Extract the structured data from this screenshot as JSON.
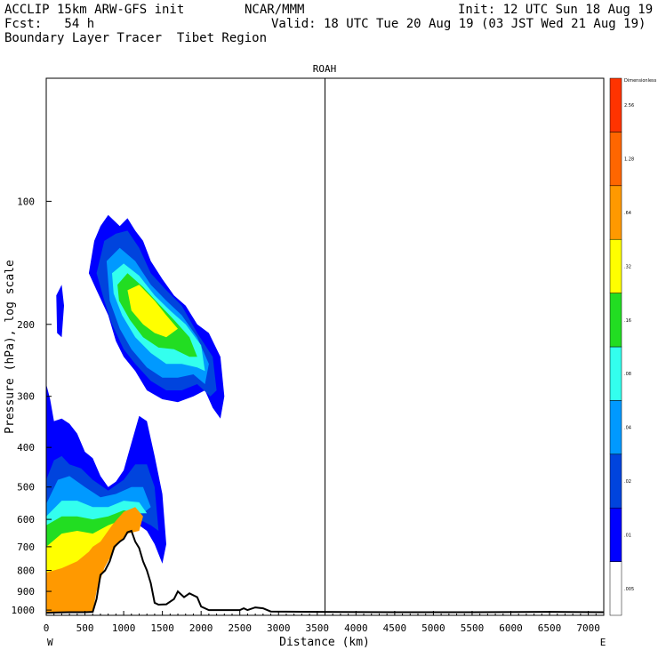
{
  "header": {
    "line1_left": "ACCLIP 15km ARW-GFS init",
    "line1_center": "NCAR/MMM",
    "line1_right": "Init: 12 UTC Sun 18 Aug 19",
    "line2_left": "Fcst:   54 h",
    "line2_right": "Valid: 18 UTC Tue 20 Aug 19 (03 JST Wed 21 Aug 19)",
    "line3_left": "Boundary Layer Tracer  Tibet Region"
  },
  "chart_data": {
    "type": "heatmap",
    "title": "ROAH",
    "xlabel": "Distance (km)",
    "ylabel": "Pressure (hPa), log scale",
    "x_ticks": [
      0,
      500,
      1000,
      1500,
      2000,
      2500,
      3000,
      3500,
      4000,
      4500,
      5000,
      5500,
      6000,
      6500,
      7000
    ],
    "y_ticks": [
      100,
      200,
      300,
      400,
      500,
      600,
      700,
      800,
      900,
      1000
    ],
    "y_scale": "log",
    "xlim": [
      0,
      7200
    ],
    "ylim": [
      1030,
      50
    ],
    "x_ends": {
      "left": "W",
      "right": "E"
    },
    "vertical_marker_km": 3600,
    "colorbar": {
      "title": "Dimensionless",
      "levels": [
        ".005",
        ".01",
        ".02",
        ".04",
        ".08",
        ".16",
        ".32",
        ".64",
        "1.28",
        "2.56"
      ],
      "colors": [
        "#ffffff",
        "#0000ff",
        "#0044dd",
        "#0099ff",
        "#33ffee",
        "#22dd22",
        "#ffff00",
        "#ff9900",
        "#ff6600",
        "#ff3300"
      ]
    },
    "terrain_profile": [
      [
        0,
        1015
      ],
      [
        100,
        1014
      ],
      [
        300,
        1012
      ],
      [
        500,
        1012
      ],
      [
        600,
        1010
      ],
      [
        650,
        940
      ],
      [
        700,
        820
      ],
      [
        760,
        800
      ],
      [
        820,
        760
      ],
      [
        880,
        700
      ],
      [
        950,
        680
      ],
      [
        1000,
        670
      ],
      [
        1050,
        645
      ],
      [
        1100,
        640
      ],
      [
        1150,
        680
      ],
      [
        1200,
        705
      ],
      [
        1250,
        760
      ],
      [
        1300,
        800
      ],
      [
        1350,
        860
      ],
      [
        1400,
        960
      ],
      [
        1450,
        970
      ],
      [
        1550,
        968
      ],
      [
        1650,
        940
      ],
      [
        1700,
        900
      ],
      [
        1780,
        930
      ],
      [
        1850,
        910
      ],
      [
        1950,
        930
      ],
      [
        2000,
        980
      ],
      [
        2100,
        1000
      ],
      [
        2500,
        1000
      ],
      [
        2550,
        990
      ],
      [
        2600,
        1000
      ],
      [
        2700,
        985
      ],
      [
        2800,
        990
      ],
      [
        2900,
        1008
      ],
      [
        3500,
        1010
      ],
      [
        4500,
        1012
      ],
      [
        5500,
        1012
      ],
      [
        6500,
        1010
      ],
      [
        7200,
        1012
      ]
    ],
    "tracer_regions": [
      {
        "name": "upper-plume-outer",
        "level": ".01",
        "points": [
          [
            550,
            150
          ],
          [
            620,
            125
          ],
          [
            700,
            115
          ],
          [
            800,
            108
          ],
          [
            950,
            115
          ],
          [
            1050,
            110
          ],
          [
            1150,
            118
          ],
          [
            1250,
            125
          ],
          [
            1350,
            140
          ],
          [
            1500,
            155
          ],
          [
            1650,
            170
          ],
          [
            1800,
            180
          ],
          [
            1950,
            200
          ],
          [
            2100,
            210
          ],
          [
            2250,
            240
          ],
          [
            2300,
            300
          ],
          [
            2250,
            340
          ],
          [
            2150,
            320
          ],
          [
            2050,
            290
          ],
          [
            1900,
            300
          ],
          [
            1700,
            310
          ],
          [
            1500,
            305
          ],
          [
            1300,
            290
          ],
          [
            1150,
            260
          ],
          [
            1000,
            240
          ],
          [
            900,
            220
          ],
          [
            800,
            190
          ],
          [
            650,
            165
          ]
        ]
      },
      {
        "name": "upper-plume-g02",
        "level": ".02",
        "points": [
          [
            650,
            150
          ],
          [
            750,
            125
          ],
          [
            900,
            120
          ],
          [
            1050,
            118
          ],
          [
            1200,
            130
          ],
          [
            1350,
            150
          ],
          [
            1550,
            165
          ],
          [
            1750,
            180
          ],
          [
            1950,
            210
          ],
          [
            2150,
            240
          ],
          [
            2200,
            290
          ],
          [
            2120,
            300
          ],
          [
            1950,
            280
          ],
          [
            1750,
            290
          ],
          [
            1550,
            290
          ],
          [
            1350,
            275
          ],
          [
            1150,
            250
          ],
          [
            1000,
            230
          ],
          [
            850,
            200
          ],
          [
            750,
            175
          ]
        ]
      },
      {
        "name": "upper-plume-g04",
        "level": ".04",
        "points": [
          [
            780,
            140
          ],
          [
            950,
            130
          ],
          [
            1150,
            140
          ],
          [
            1350,
            160
          ],
          [
            1550,
            175
          ],
          [
            1750,
            190
          ],
          [
            1950,
            215
          ],
          [
            2100,
            250
          ],
          [
            2050,
            280
          ],
          [
            1900,
            265
          ],
          [
            1700,
            270
          ],
          [
            1500,
            270
          ],
          [
            1300,
            255
          ],
          [
            1100,
            230
          ],
          [
            950,
            205
          ],
          [
            820,
            175
          ]
        ]
      },
      {
        "name": "upper-plume-g08",
        "level": ".08",
        "points": [
          [
            850,
            150
          ],
          [
            1000,
            142
          ],
          [
            1200,
            152
          ],
          [
            1400,
            170
          ],
          [
            1600,
            185
          ],
          [
            1800,
            200
          ],
          [
            2000,
            225
          ],
          [
            2050,
            260
          ],
          [
            1950,
            255
          ],
          [
            1750,
            250
          ],
          [
            1550,
            250
          ],
          [
            1350,
            235
          ],
          [
            1150,
            215
          ],
          [
            980,
            190
          ],
          [
            870,
            168
          ]
        ]
      },
      {
        "name": "upper-plume-g16",
        "level": ".16",
        "points": [
          [
            920,
            160
          ],
          [
            1050,
            150
          ],
          [
            1250,
            162
          ],
          [
            1450,
            178
          ],
          [
            1650,
            195
          ],
          [
            1850,
            215
          ],
          [
            1950,
            240
          ],
          [
            1850,
            240
          ],
          [
            1650,
            230
          ],
          [
            1450,
            228
          ],
          [
            1250,
            215
          ],
          [
            1080,
            195
          ],
          [
            940,
            175
          ]
        ]
      },
      {
        "name": "upper-plume-g32",
        "level": ".32",
        "points": [
          [
            1050,
            165
          ],
          [
            1200,
            160
          ],
          [
            1400,
            175
          ],
          [
            1550,
            190
          ],
          [
            1700,
            205
          ],
          [
            1550,
            215
          ],
          [
            1400,
            210
          ],
          [
            1250,
            200
          ],
          [
            1100,
            185
          ]
        ]
      },
      {
        "name": "left-blob",
        "level": ".01",
        "points": [
          [
            130,
            170
          ],
          [
            200,
            160
          ],
          [
            230,
            180
          ],
          [
            200,
            215
          ],
          [
            140,
            210
          ]
        ]
      },
      {
        "name": "lower-plume-outer",
        "level": ".01",
        "points": [
          [
            0,
            280
          ],
          [
            50,
            305
          ],
          [
            100,
            345
          ],
          [
            200,
            340
          ],
          [
            300,
            350
          ],
          [
            400,
            370
          ],
          [
            500,
            410
          ],
          [
            600,
            425
          ],
          [
            700,
            470
          ],
          [
            800,
            500
          ],
          [
            900,
            485
          ],
          [
            1000,
            455
          ],
          [
            1100,
            390
          ],
          [
            1200,
            335
          ],
          [
            1300,
            345
          ],
          [
            1400,
            420
          ],
          [
            1500,
            520
          ],
          [
            1550,
            690
          ],
          [
            1500,
            770
          ],
          [
            1400,
            690
          ],
          [
            1300,
            640
          ],
          [
            1200,
            620
          ],
          [
            1100,
            600
          ],
          [
            900,
            630
          ],
          [
            700,
            700
          ],
          [
            600,
            800
          ],
          [
            450,
            850
          ],
          [
            200,
            860
          ],
          [
            0,
            840
          ]
        ]
      },
      {
        "name": "lower-plume-g02",
        "level": ".02",
        "points": [
          [
            0,
            480
          ],
          [
            100,
            430
          ],
          [
            200,
            420
          ],
          [
            300,
            440
          ],
          [
            450,
            450
          ],
          [
            600,
            480
          ],
          [
            800,
            510
          ],
          [
            1000,
            480
          ],
          [
            1150,
            440
          ],
          [
            1300,
            440
          ],
          [
            1400,
            500
          ],
          [
            1450,
            640
          ],
          [
            1350,
            620
          ],
          [
            1200,
            600
          ],
          [
            1000,
            590
          ],
          [
            800,
            620
          ],
          [
            650,
            700
          ],
          [
            500,
            800
          ],
          [
            300,
            830
          ],
          [
            0,
            830
          ]
        ]
      },
      {
        "name": "lower-plume-g04",
        "level": ".04",
        "points": [
          [
            0,
            550
          ],
          [
            150,
            480
          ],
          [
            300,
            470
          ],
          [
            500,
            500
          ],
          [
            700,
            530
          ],
          [
            900,
            520
          ],
          [
            1100,
            500
          ],
          [
            1250,
            500
          ],
          [
            1350,
            560
          ],
          [
            1250,
            580
          ],
          [
            1050,
            570
          ],
          [
            850,
            600
          ],
          [
            650,
            690
          ],
          [
            450,
            790
          ],
          [
            250,
            810
          ],
          [
            0,
            820
          ]
        ]
      },
      {
        "name": "lower-plume-g08",
        "level": ".08",
        "points": [
          [
            0,
            590
          ],
          [
            200,
            540
          ],
          [
            400,
            540
          ],
          [
            600,
            560
          ],
          [
            800,
            560
          ],
          [
            1000,
            540
          ],
          [
            1200,
            545
          ],
          [
            1300,
            580
          ],
          [
            1100,
            580
          ],
          [
            900,
            600
          ],
          [
            700,
            680
          ],
          [
            500,
            780
          ],
          [
            300,
            800
          ],
          [
            0,
            810
          ]
        ]
      },
      {
        "name": "lower-plume-g16",
        "level": ".16",
        "points": [
          [
            0,
            620
          ],
          [
            200,
            590
          ],
          [
            400,
            590
          ],
          [
            600,
            600
          ],
          [
            800,
            590
          ],
          [
            1000,
            570
          ],
          [
            1200,
            580
          ],
          [
            1000,
            600
          ],
          [
            800,
            640
          ],
          [
            650,
            720
          ],
          [
            500,
            790
          ],
          [
            250,
            805
          ],
          [
            0,
            812
          ]
        ]
      },
      {
        "name": "lower-plume-g32",
        "level": ".32",
        "points": [
          [
            0,
            700
          ],
          [
            200,
            650
          ],
          [
            400,
            640
          ],
          [
            600,
            650
          ],
          [
            800,
            620
          ],
          [
            1000,
            600
          ],
          [
            1150,
            610
          ],
          [
            950,
            640
          ],
          [
            800,
            680
          ],
          [
            650,
            760
          ],
          [
            500,
            805
          ],
          [
            250,
            810
          ],
          [
            0,
            815
          ]
        ]
      },
      {
        "name": "lower-plume-g64",
        "level": ".64",
        "points": [
          [
            0,
            810
          ],
          [
            200,
            790
          ],
          [
            400,
            760
          ],
          [
            550,
            720
          ],
          [
            600,
            700
          ],
          [
            700,
            680
          ],
          [
            850,
            620
          ],
          [
            1000,
            575
          ],
          [
            1150,
            560
          ],
          [
            1250,
            590
          ],
          [
            1200,
            640
          ],
          [
            1050,
            650
          ],
          [
            900,
            700
          ],
          [
            750,
            790
          ],
          [
            650,
            900
          ],
          [
            600,
            1010
          ],
          [
            0,
            1015
          ]
        ]
      }
    ]
  }
}
